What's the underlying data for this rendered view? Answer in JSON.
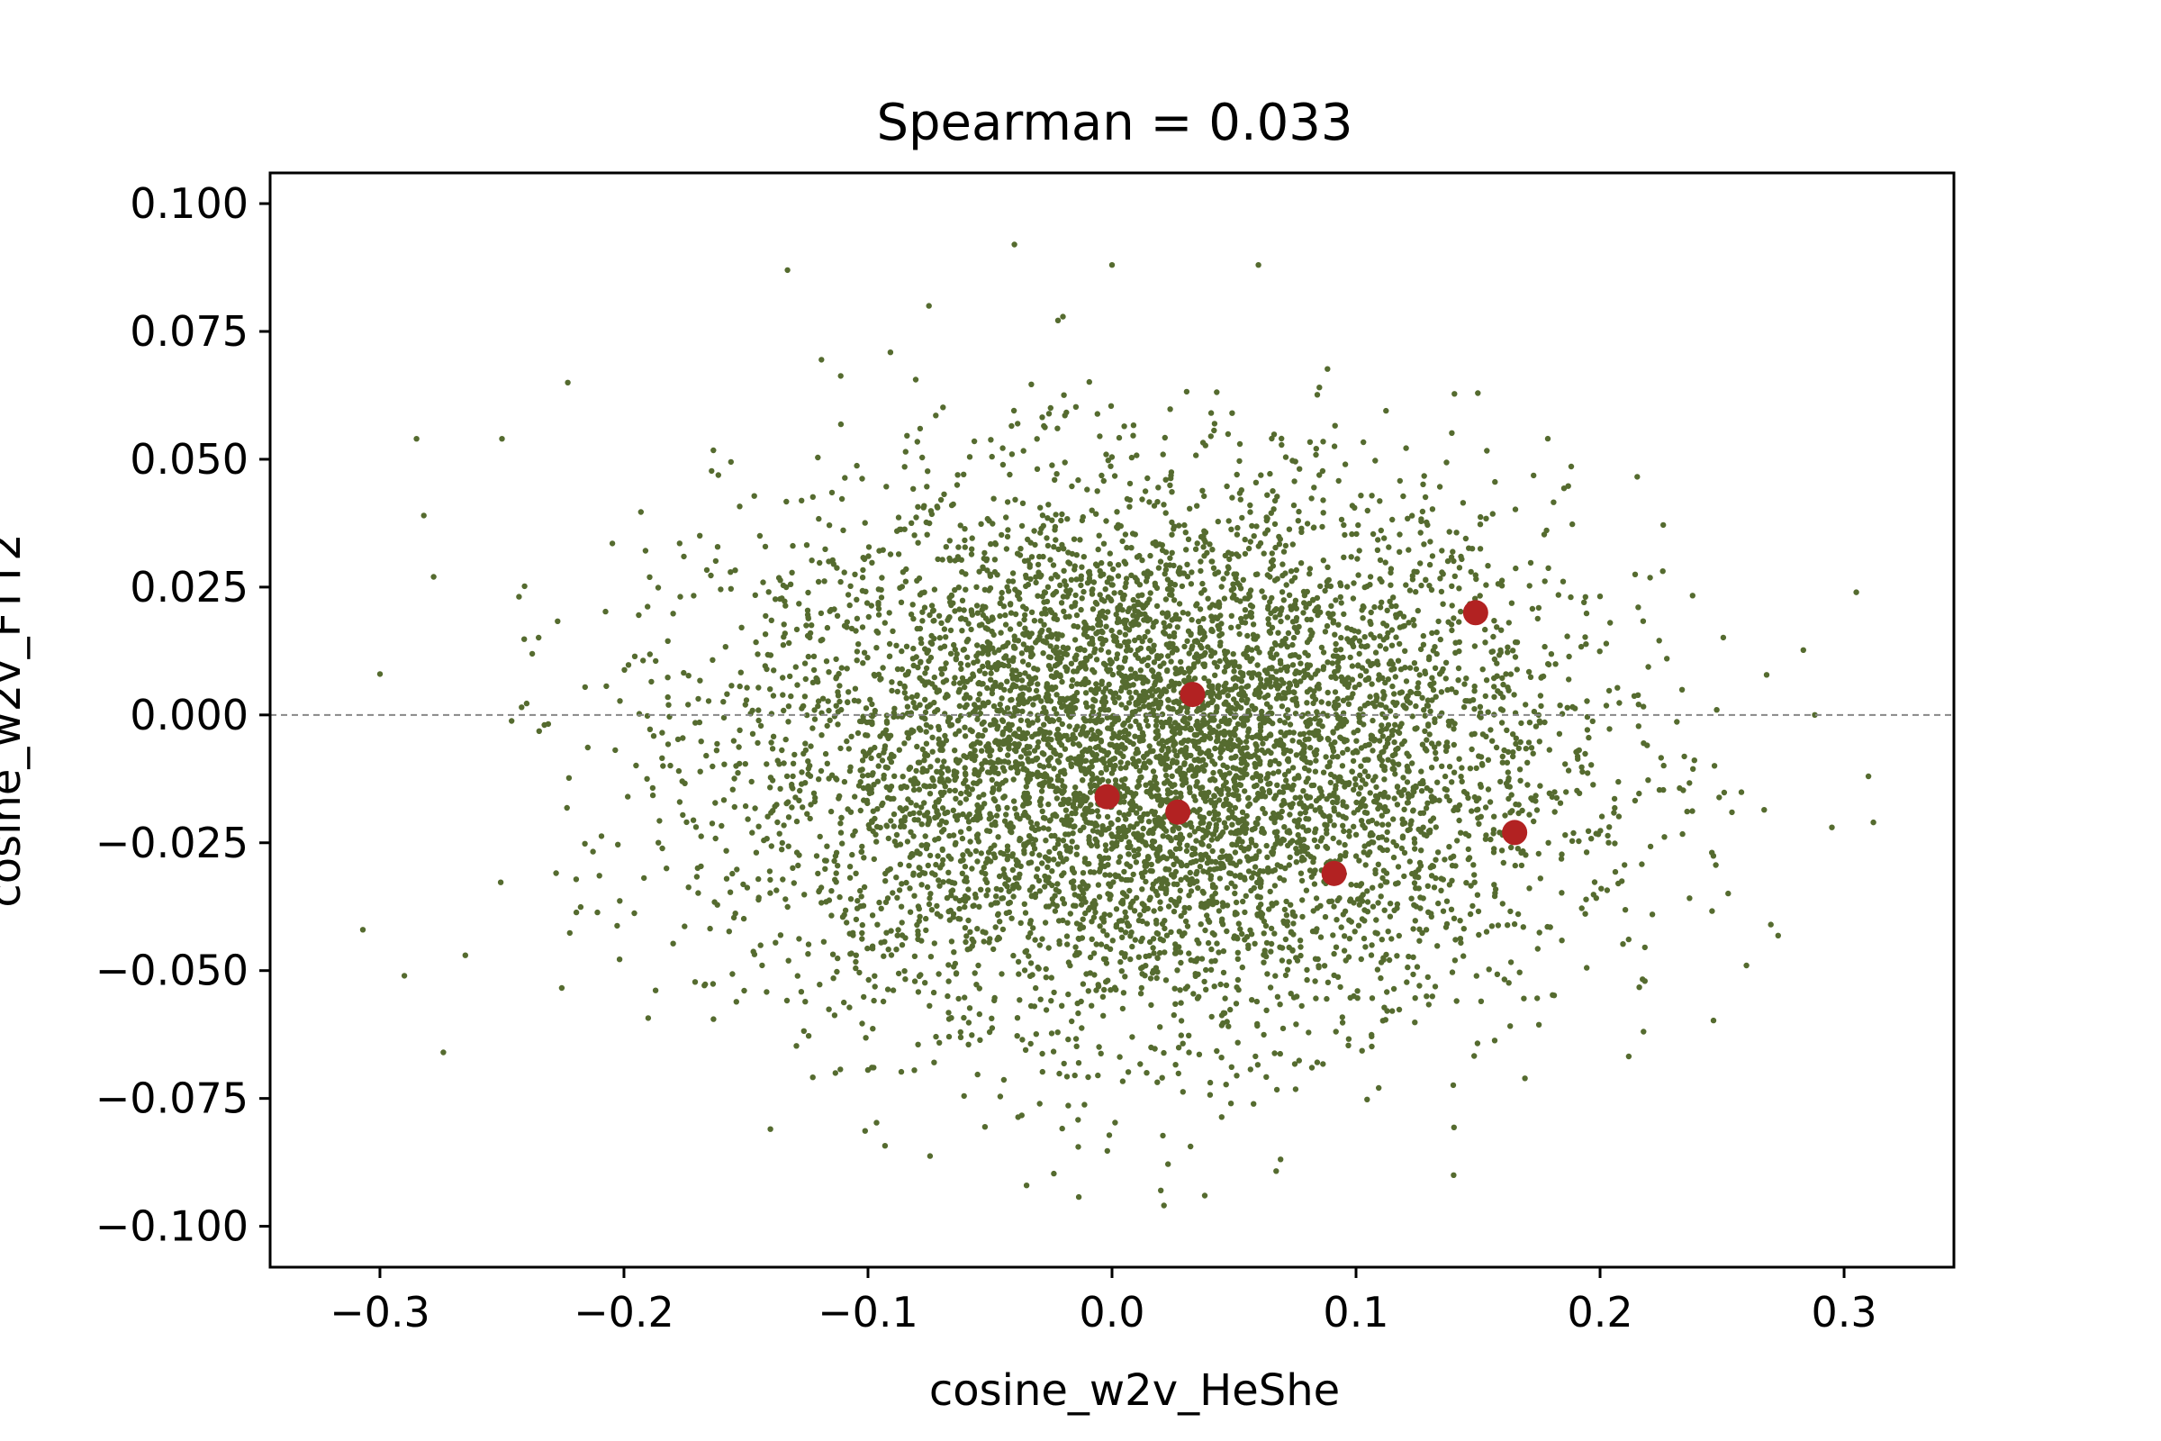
{
  "chart_data": {
    "type": "scatter",
    "title": "Spearman = 0.033",
    "xlabel": "cosine_w2v_HeShe",
    "ylabel": "cosine_w2v_FTT2",
    "xlim": [
      -0.345,
      0.345
    ],
    "ylim": [
      -0.108,
      0.106
    ],
    "x_ticks": [
      -0.3,
      -0.2,
      -0.1,
      0.0,
      0.1,
      0.2,
      0.3
    ],
    "x_tick_labels": [
      "−0.3",
      "−0.2",
      "−0.1",
      "0.0",
      "0.1",
      "0.2",
      "0.3"
    ],
    "y_ticks": [
      0.1,
      0.075,
      0.05,
      0.025,
      0.0,
      -0.025,
      -0.05,
      -0.075,
      -0.1
    ],
    "y_tick_labels": [
      "0.100",
      "0.075",
      "0.050",
      "0.025",
      "0.000",
      "−0.025",
      "−0.050",
      "−0.075",
      "−0.100"
    ],
    "reference_line": {
      "y": 0.0,
      "style": "dashed",
      "color": "#888888"
    },
    "grid": false,
    "legend": "none",
    "series": [
      {
        "role": "background",
        "color": "#556b2f",
        "cloud": {
          "center_x": 0.015,
          "center_y": -0.008,
          "std_x": 0.085,
          "std_y": 0.026,
          "dense_extent_x": [
            -0.25,
            0.27
          ],
          "dense_extent_y": [
            -0.085,
            0.075
          ],
          "point_count": 18000
        },
        "outlier_points": [
          [
            -0.307,
            -0.042
          ],
          [
            -0.3,
            0.008
          ],
          [
            -0.29,
            -0.051
          ],
          [
            -0.285,
            0.054
          ],
          [
            -0.282,
            0.039
          ],
          [
            -0.274,
            -0.066
          ],
          [
            -0.265,
            -0.047
          ],
          [
            -0.278,
            0.027
          ],
          [
            -0.25,
            0.054
          ],
          [
            -0.223,
            0.065
          ],
          [
            -0.133,
            0.087
          ],
          [
            -0.075,
            0.08
          ],
          [
            -0.04,
            0.092
          ],
          [
            0.0,
            0.088
          ],
          [
            0.06,
            0.088
          ],
          [
            0.305,
            0.024
          ],
          [
            0.31,
            -0.012
          ],
          [
            0.312,
            -0.021
          ],
          [
            0.295,
            -0.022
          ],
          [
            0.288,
            0.0
          ],
          [
            0.27,
            -0.041
          ],
          [
            0.26,
            -0.049
          ],
          [
            0.02,
            -0.093
          ],
          [
            0.038,
            -0.094
          ],
          [
            -0.035,
            -0.092
          ],
          [
            0.14,
            -0.09
          ],
          [
            -0.14,
            -0.081
          ]
        ]
      },
      {
        "role": "highlighted",
        "color": "#b22222",
        "points": [
          {
            "x": 0.033,
            "y": 0.004
          },
          {
            "x": 0.149,
            "y": 0.02
          },
          {
            "x": -0.002,
            "y": -0.016
          },
          {
            "x": 0.027,
            "y": -0.019
          },
          {
            "x": 0.165,
            "y": -0.023
          },
          {
            "x": 0.091,
            "y": -0.031
          }
        ]
      }
    ]
  }
}
